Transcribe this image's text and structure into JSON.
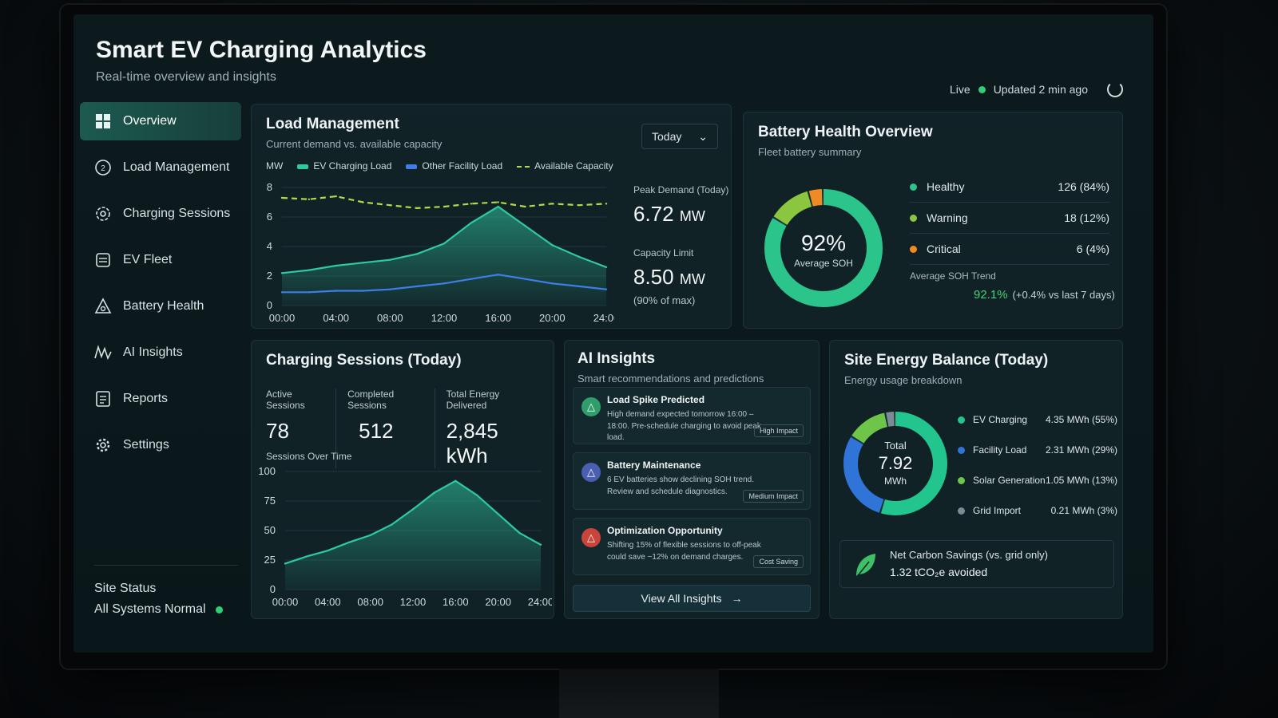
{
  "header": {
    "title": "Smart EV Charging Analytics",
    "subtitle": "Real-time overview and insights",
    "live_label": "Live",
    "updated_label": "Updated 2 min ago"
  },
  "sidebar": {
    "items": [
      {
        "label": "Overview",
        "icon": "grid-icon"
      },
      {
        "label": "Load Management",
        "icon": "gauge-icon"
      },
      {
        "label": "Charging Sessions",
        "icon": "charger-icon"
      },
      {
        "label": "EV Fleet",
        "icon": "vehicle-icon"
      },
      {
        "label": "Battery Health",
        "icon": "battery-alert-icon"
      },
      {
        "label": "AI Insights",
        "icon": "pulse-icon"
      },
      {
        "label": "Reports",
        "icon": "report-icon"
      },
      {
        "label": "Settings",
        "icon": "gear-icon"
      }
    ],
    "site_status_label": "Site Status",
    "site_status_value": "All Systems Normal"
  },
  "load_management": {
    "title": "Load Management",
    "subtitle": "Current demand vs. available capacity",
    "range_select": "Today",
    "unit_label": "MW",
    "peak_label": "Peak Demand (Today)",
    "peak_value": "6.72",
    "peak_unit": "MW",
    "capacity_label": "Capacity Limit",
    "capacity_value": "8.50",
    "capacity_unit": "MW",
    "capacity_note": "(90% of max)"
  },
  "battery_health": {
    "title": "Battery Health Overview",
    "subtitle": "Fleet battery summary",
    "center_value": "92%",
    "center_label": "Average SOH",
    "rows": [
      {
        "name": "Healthy",
        "value": "126 (84%)",
        "color": "#2bc48a"
      },
      {
        "name": "Warning",
        "value": "18 (12%)",
        "color": "#8cc63f"
      },
      {
        "name": "Critical",
        "value": "6 (4%)",
        "color": "#f08a24"
      }
    ],
    "trend_label": "Average SOH Trend",
    "trend_value": "92.1%",
    "trend_delta": "(+0.4% vs last 7 days)"
  },
  "charging_sessions": {
    "title": "Charging Sessions (Today)",
    "kpis": [
      {
        "label": "Active Sessions",
        "value": "78"
      },
      {
        "label": "Completed Sessions",
        "value": "512"
      },
      {
        "label": "Total Energy Delivered",
        "value": "2,845 kWh"
      }
    ],
    "over_time_label": "Sessions Over Time"
  },
  "ai_insights": {
    "title": "AI Insights",
    "subtitle": "Smart recommendations and predictions",
    "items": [
      {
        "title": "Load Spike Predicted",
        "desc": "High demand expected tomorrow 16:00 – 18:00. Pre-schedule charging to avoid peak load.",
        "tag": "High Impact",
        "color": "#2f9e6a"
      },
      {
        "title": "Battery Maintenance",
        "desc": "6 EV batteries show declining SOH trend. Review and schedule diagnostics.",
        "tag": "Medium Impact",
        "color": "#4a5fb0"
      },
      {
        "title": "Optimization Opportunity",
        "desc": "Shifting 15% of flexible sessions to off-peak could save ~12% on demand charges.",
        "tag": "Cost Saving",
        "color": "#c9443b"
      }
    ],
    "view_all": "View All Insights"
  },
  "site_energy": {
    "title": "Site Energy Balance (Today)",
    "subtitle": "Energy usage breakdown",
    "center_label": "Total",
    "center_value": "7.92",
    "center_unit": "MWh",
    "rows": [
      {
        "name": "EV Charging",
        "value": "4.35 MWh (55%)",
        "color": "#22c58e",
        "share": 55
      },
      {
        "name": "Facility Load",
        "value": "2.31 MWh (29%)",
        "color": "#2f74d6",
        "share": 29
      },
      {
        "name": "Solar Generation",
        "value": "1.05 MWh (13%)",
        "color": "#6fc44a",
        "share": 13
      },
      {
        "name": "Grid Import",
        "value": "0.21 MWh (3%)",
        "color": "#7d8c92",
        "share": 3
      }
    ],
    "carbon_label": "Net Carbon Savings (vs. grid only)",
    "carbon_value": "1.32 tCO₂e avoided"
  },
  "chart_data": [
    {
      "type": "line",
      "title": "Load Management",
      "ylabel": "MW",
      "x": [
        "00:00",
        "02:00",
        "04:00",
        "06:00",
        "08:00",
        "10:00",
        "12:00",
        "14:00",
        "16:00",
        "18:00",
        "20:00",
        "22:00",
        "24:00"
      ],
      "ylim": [
        0,
        8
      ],
      "yticks": [
        0,
        2,
        4,
        6,
        8
      ],
      "xticks": [
        "00:00",
        "04:00",
        "08:00",
        "12:00",
        "16:00",
        "20:00",
        "24:00"
      ],
      "legend": "top",
      "series": [
        {
          "name": "EV Charging Load",
          "color": "#2fc9a0",
          "values": [
            2.2,
            2.4,
            2.7,
            2.9,
            3.1,
            3.5,
            4.2,
            5.6,
            6.7,
            5.4,
            4.1,
            3.3,
            2.6
          ]
        },
        {
          "name": "Other Facility Load",
          "color": "#3f7ee8",
          "values": [
            0.9,
            0.9,
            1.0,
            1.0,
            1.1,
            1.3,
            1.5,
            1.8,
            2.1,
            1.8,
            1.5,
            1.3,
            1.1
          ]
        },
        {
          "name": "Available Capacity",
          "color": "#b7d84b",
          "values": [
            7.3,
            7.2,
            7.4,
            7.0,
            6.8,
            6.6,
            6.7,
            6.9,
            7.0,
            6.7,
            6.9,
            6.8,
            6.9
          ]
        }
      ]
    },
    {
      "type": "area",
      "title": "Sessions Over Time",
      "x": [
        "00:00",
        "02:00",
        "04:00",
        "06:00",
        "08:00",
        "10:00",
        "12:00",
        "14:00",
        "16:00",
        "18:00",
        "20:00",
        "22:00",
        "24:00"
      ],
      "ylim": [
        0,
        100
      ],
      "yticks": [
        0,
        25,
        50,
        75,
        100
      ],
      "xticks": [
        "00:00",
        "04:00",
        "08:00",
        "12:00",
        "16:00",
        "20:00",
        "24:00"
      ],
      "series": [
        {
          "name": "",
          "color": "#2fc9a0",
          "values": [
            22,
            28,
            33,
            40,
            46,
            55,
            68,
            82,
            92,
            80,
            64,
            48,
            38
          ]
        }
      ]
    },
    {
      "type": "pie",
      "title": "Battery Health Overview",
      "categories": [
        "Healthy",
        "Warning",
        "Critical"
      ],
      "values": [
        84,
        12,
        4
      ]
    },
    {
      "type": "pie",
      "title": "Site Energy Balance (Today)",
      "categories": [
        "EV Charging",
        "Facility Load",
        "Solar Generation",
        "Grid Import"
      ],
      "values": [
        55,
        29,
        13,
        3
      ]
    }
  ]
}
